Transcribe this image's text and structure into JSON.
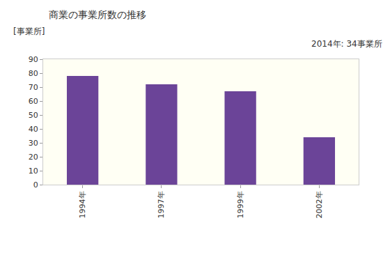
{
  "chart_data": {
    "type": "bar",
    "title": "商業の事業所数の推移",
    "ylabel": "[事業所]",
    "annotations": [
      "2014年: 34事業所"
    ],
    "categories": [
      "1994年",
      "1997年",
      "1999年",
      "2002年"
    ],
    "values": [
      78,
      72,
      67,
      34
    ],
    "color": "#6b4498",
    "ylim": [
      0,
      90
    ],
    "yticks": [
      0,
      10,
      20,
      30,
      40,
      50,
      60,
      70,
      80,
      90
    ],
    "grid": false
  }
}
